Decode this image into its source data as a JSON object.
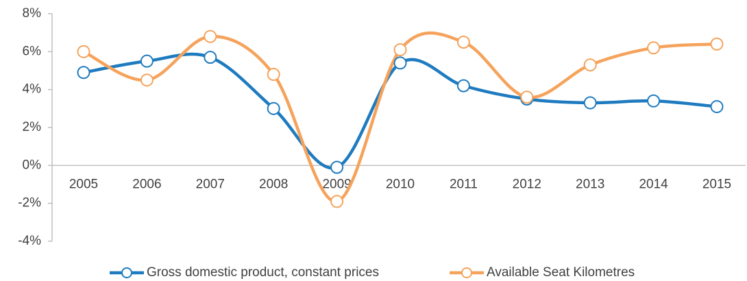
{
  "chart_data": {
    "type": "line",
    "categories": [
      "2005",
      "2006",
      "2007",
      "2008",
      "2009",
      "2010",
      "2011",
      "2012",
      "2013",
      "2014",
      "2015"
    ],
    "series": [
      {
        "name": "Gross domestic product, constant prices",
        "color": "#1f7bbf",
        "values": [
          4.9,
          5.5,
          5.7,
          3.0,
          -0.1,
          5.4,
          4.2,
          3.5,
          3.3,
          3.4,
          3.1
        ]
      },
      {
        "name": "Available Seat Kilometres",
        "color": "#f5a35c",
        "values": [
          6.0,
          4.5,
          6.8,
          4.8,
          -1.9,
          6.1,
          6.5,
          3.6,
          5.3,
          6.2,
          6.4
        ]
      }
    ],
    "ylim": [
      -4,
      8
    ],
    "yticks": [
      {
        "value": -4,
        "label": "-4%"
      },
      {
        "value": -2,
        "label": "-2%"
      },
      {
        "value": 0,
        "label": "0%"
      },
      {
        "value": 2,
        "label": "2%"
      },
      {
        "value": 4,
        "label": "4%"
      },
      {
        "value": 6,
        "label": "6%"
      },
      {
        "value": 8,
        "label": "8%"
      }
    ],
    "grid": false,
    "legend": "bottom",
    "smooth": true
  }
}
